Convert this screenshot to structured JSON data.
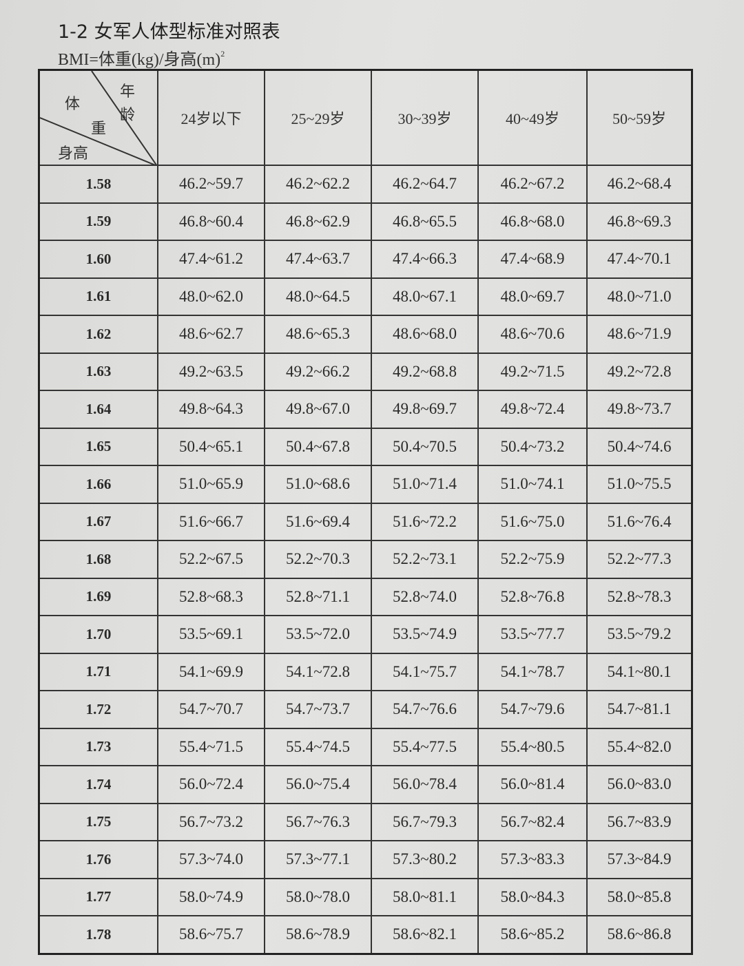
{
  "title": "1-2 女军人体型标准对照表",
  "formula": {
    "text": "BMI=体重(kg)/身高(m)",
    "sup": "2"
  },
  "table": {
    "corner": {
      "weight": "体",
      "weight2": "重",
      "age": "年",
      "age2": "龄",
      "height": "身高"
    },
    "columns": [
      "24岁以下",
      "25~29岁",
      "30~39岁",
      "40~49岁",
      "50~59岁"
    ],
    "rows": [
      [
        "1.58",
        "46.2~59.7",
        "46.2~62.2",
        "46.2~64.7",
        "46.2~67.2",
        "46.2~68.4"
      ],
      [
        "1.59",
        "46.8~60.4",
        "46.8~62.9",
        "46.8~65.5",
        "46.8~68.0",
        "46.8~69.3"
      ],
      [
        "1.60",
        "47.4~61.2",
        "47.4~63.7",
        "47.4~66.3",
        "47.4~68.9",
        "47.4~70.1"
      ],
      [
        "1.61",
        "48.0~62.0",
        "48.0~64.5",
        "48.0~67.1",
        "48.0~69.7",
        "48.0~71.0"
      ],
      [
        "1.62",
        "48.6~62.7",
        "48.6~65.3",
        "48.6~68.0",
        "48.6~70.6",
        "48.6~71.9"
      ],
      [
        "1.63",
        "49.2~63.5",
        "49.2~66.2",
        "49.2~68.8",
        "49.2~71.5",
        "49.2~72.8"
      ],
      [
        "1.64",
        "49.8~64.3",
        "49.8~67.0",
        "49.8~69.7",
        "49.8~72.4",
        "49.8~73.7"
      ],
      [
        "1.65",
        "50.4~65.1",
        "50.4~67.8",
        "50.4~70.5",
        "50.4~73.2",
        "50.4~74.6"
      ],
      [
        "1.66",
        "51.0~65.9",
        "51.0~68.6",
        "51.0~71.4",
        "51.0~74.1",
        "51.0~75.5"
      ],
      [
        "1.67",
        "51.6~66.7",
        "51.6~69.4",
        "51.6~72.2",
        "51.6~75.0",
        "51.6~76.4"
      ],
      [
        "1.68",
        "52.2~67.5",
        "52.2~70.3",
        "52.2~73.1",
        "52.2~75.9",
        "52.2~77.3"
      ],
      [
        "1.69",
        "52.8~68.3",
        "52.8~71.1",
        "52.8~74.0",
        "52.8~76.8",
        "52.8~78.3"
      ],
      [
        "1.70",
        "53.5~69.1",
        "53.5~72.0",
        "53.5~74.9",
        "53.5~77.7",
        "53.5~79.2"
      ],
      [
        "1.71",
        "54.1~69.9",
        "54.1~72.8",
        "54.1~75.7",
        "54.1~78.7",
        "54.1~80.1"
      ],
      [
        "1.72",
        "54.7~70.7",
        "54.7~73.7",
        "54.7~76.6",
        "54.7~79.6",
        "54.7~81.1"
      ],
      [
        "1.73",
        "55.4~71.5",
        "55.4~74.5",
        "55.4~77.5",
        "55.4~80.5",
        "55.4~82.0"
      ],
      [
        "1.74",
        "56.0~72.4",
        "56.0~75.4",
        "56.0~78.4",
        "56.0~81.4",
        "56.0~83.0"
      ],
      [
        "1.75",
        "56.7~73.2",
        "56.7~76.3",
        "56.7~79.3",
        "56.7~82.4",
        "56.7~83.9"
      ],
      [
        "1.76",
        "57.3~74.0",
        "57.3~77.1",
        "57.3~80.2",
        "57.3~83.3",
        "57.3~84.9"
      ],
      [
        "1.77",
        "58.0~74.9",
        "58.0~78.0",
        "58.0~81.1",
        "58.0~84.3",
        "58.0~85.8"
      ],
      [
        "1.78",
        "58.6~75.7",
        "58.6~78.9",
        "58.6~82.1",
        "58.6~85.2",
        "58.6~86.8"
      ]
    ]
  }
}
